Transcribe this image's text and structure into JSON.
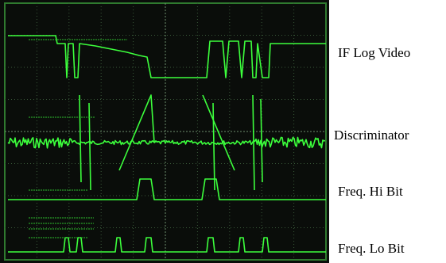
{
  "traces": [
    {
      "label": "IF Log Video"
    },
    {
      "label": "Discriminator"
    },
    {
      "label": "Freq. Hi Bit"
    },
    {
      "label": "Freq. Lo Bit"
    }
  ]
}
